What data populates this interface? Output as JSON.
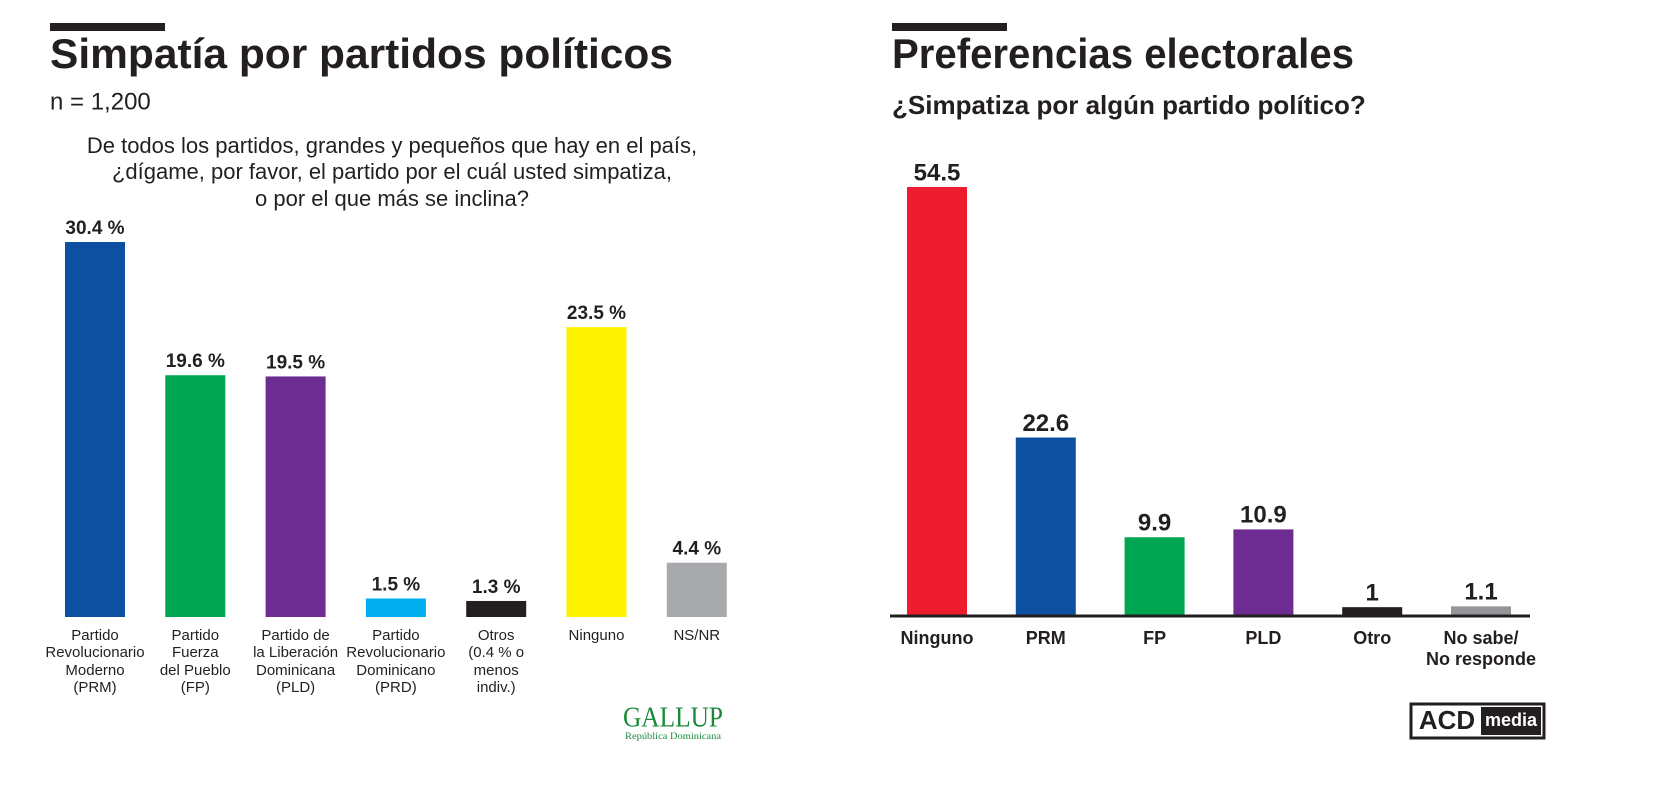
{
  "chart_data": [
    {
      "type": "bar",
      "title": "Simpatía por partidos políticos",
      "subtitle": "n = 1,200",
      "question": "De todos los partidos, grandes y pequeños que hay en el país,\n¿dígame, por favor, el partido por el cuál usted simpatiza,\no por el que más se inclina?",
      "categories": [
        "Partido\nRevolucionario\nModerno\n(PRM)",
        "Partido\nFuerza\ndel Pueblo\n(FP)",
        "Partido de\nla Liberación\nDominicana\n(PLD)",
        "Partido\nRevolucionario\nDominicano\n(PRD)",
        "Otros\n(0.4 % o\nmenos\nindiv.)",
        "Ninguno",
        "NS/NR"
      ],
      "values": [
        30.4,
        19.6,
        19.5,
        1.5,
        1.3,
        23.5,
        4.4
      ],
      "value_labels": [
        "30.4 %",
        "19.6 %",
        "19.5 %",
        "1.5 %",
        "1.3 %",
        "23.5 %",
        "4.4 %"
      ],
      "colors": [
        "#0d4fa1",
        "#00a651",
        "#6d2c91",
        "#00aeef",
        "#231f20",
        "#fff200",
        "#a7a9ac"
      ],
      "logo": "GALLUP",
      "logo_subtitle": "República Dominicana"
    },
    {
      "type": "bar",
      "title": "Preferencias electorales",
      "subtitle": "¿Simpatiza por algún partido político?",
      "categories": [
        "Ninguno",
        "PRM",
        "FP",
        "PLD",
        "Otro",
        "No sabe/\nNo responde"
      ],
      "values": [
        54.5,
        22.6,
        9.9,
        10.9,
        1,
        1.1
      ],
      "colors": [
        "#ed1c2e",
        "#0d4fa1",
        "#00a651",
        "#6d2c91",
        "#231f20",
        "#939598"
      ],
      "logo": "ACD",
      "logo_suffix": "media"
    }
  ]
}
